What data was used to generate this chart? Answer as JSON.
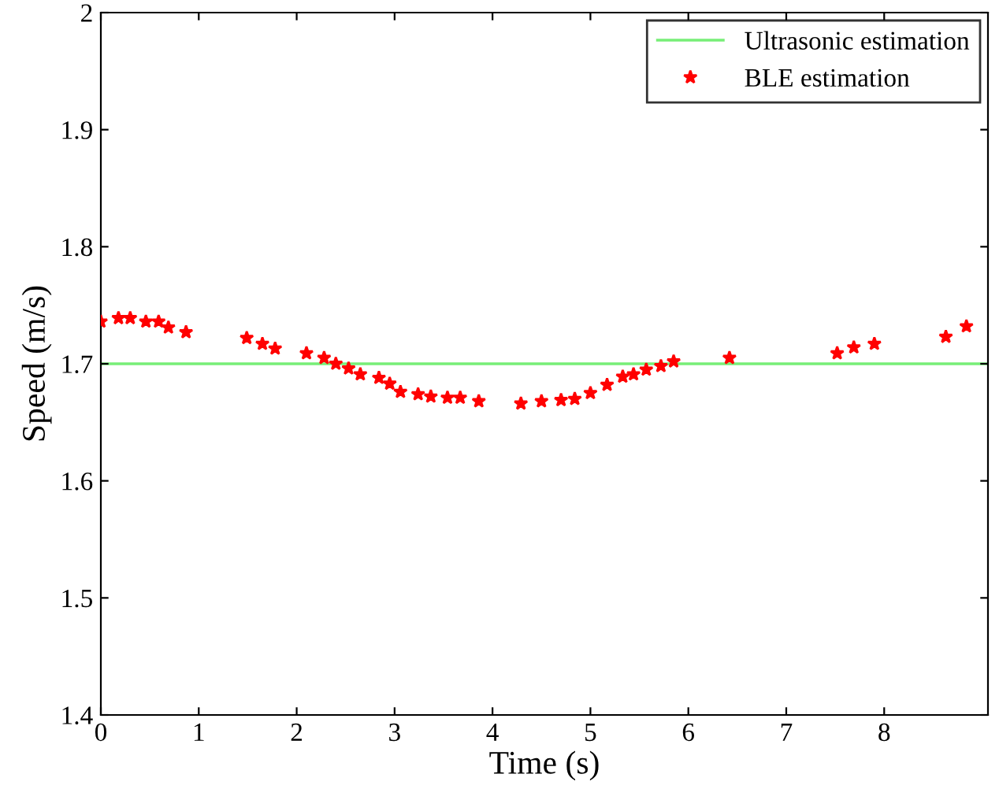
{
  "chart_data": {
    "type": "scatter",
    "xlabel": "Time (s)",
    "ylabel": "Speed (m/s)",
    "xlim": [
      0,
      9.06
    ],
    "xticks": [
      0,
      1,
      2,
      3,
      4,
      5,
      6,
      7,
      8
    ],
    "ylim": [
      1.4,
      2
    ],
    "yticks": [
      1.4,
      1.5,
      1.6,
      1.7,
      1.8,
      1.9,
      2
    ],
    "grid": false,
    "legend": "top right",
    "ref_lines": [
      {
        "axis": "y",
        "value": 1.7,
        "label": "Ultrasonic estimation",
        "color": "#77ee77",
        "line_style": "solid"
      }
    ],
    "series": [
      {
        "name": "BLE estimation",
        "color": "#ff0000",
        "marker": "star",
        "x": [
          0.0,
          0.18,
          0.3,
          0.46,
          0.59,
          0.69,
          0.87,
          1.49,
          1.65,
          1.78,
          2.1,
          2.28,
          2.4,
          2.53,
          2.65,
          2.84,
          2.95,
          3.06,
          3.24,
          3.37,
          3.54,
          3.67,
          3.86,
          4.29,
          4.5,
          4.7,
          4.84,
          5.0,
          5.17,
          5.33,
          5.44,
          5.57,
          5.72,
          5.85,
          6.42,
          7.52,
          7.69,
          7.9,
          8.63,
          8.84
        ],
        "values": [
          1.736,
          1.739,
          1.739,
          1.736,
          1.736,
          1.731,
          1.727,
          1.722,
          1.717,
          1.713,
          1.709,
          1.705,
          1.7,
          1.696,
          1.691,
          1.688,
          1.683,
          1.676,
          1.674,
          1.672,
          1.671,
          1.671,
          1.668,
          1.666,
          1.668,
          1.669,
          1.67,
          1.675,
          1.682,
          1.689,
          1.691,
          1.695,
          1.698,
          1.702,
          1.705,
          1.709,
          1.714,
          1.717,
          1.723,
          1.732
        ]
      }
    ]
  }
}
